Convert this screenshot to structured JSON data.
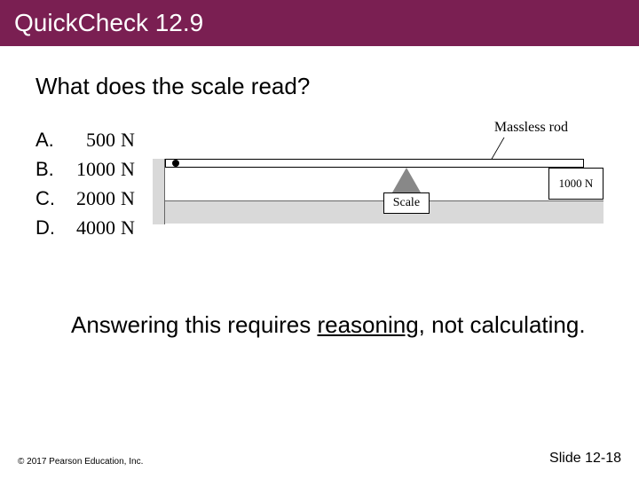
{
  "titlebar": {
    "text": "QuickCheck 12.9",
    "bg": "#7a1f52",
    "fg": "#ffffff"
  },
  "question": "What does the scale read?",
  "options": [
    {
      "letter": "A.",
      "value": "500",
      "unit": "N"
    },
    {
      "letter": "B.",
      "value": "1000",
      "unit": "N"
    },
    {
      "letter": "C.",
      "value": "2000",
      "unit": "N"
    },
    {
      "letter": "D.",
      "value": "4000",
      "unit": "N"
    }
  ],
  "diagram": {
    "massless_label": "Massless rod",
    "scale_label": "Scale",
    "weight_label": "1000 N",
    "ground_color": "#d9d9d9",
    "fulcrum_color": "#888888",
    "rod_border": "#000000"
  },
  "hint": {
    "prefix": "Answering this requires ",
    "underlined": "reasoning",
    "suffix": ", not calculating."
  },
  "footer": {
    "copyright": "© 2017 Pearson Education, Inc.",
    "slide": "Slide 12-18"
  }
}
